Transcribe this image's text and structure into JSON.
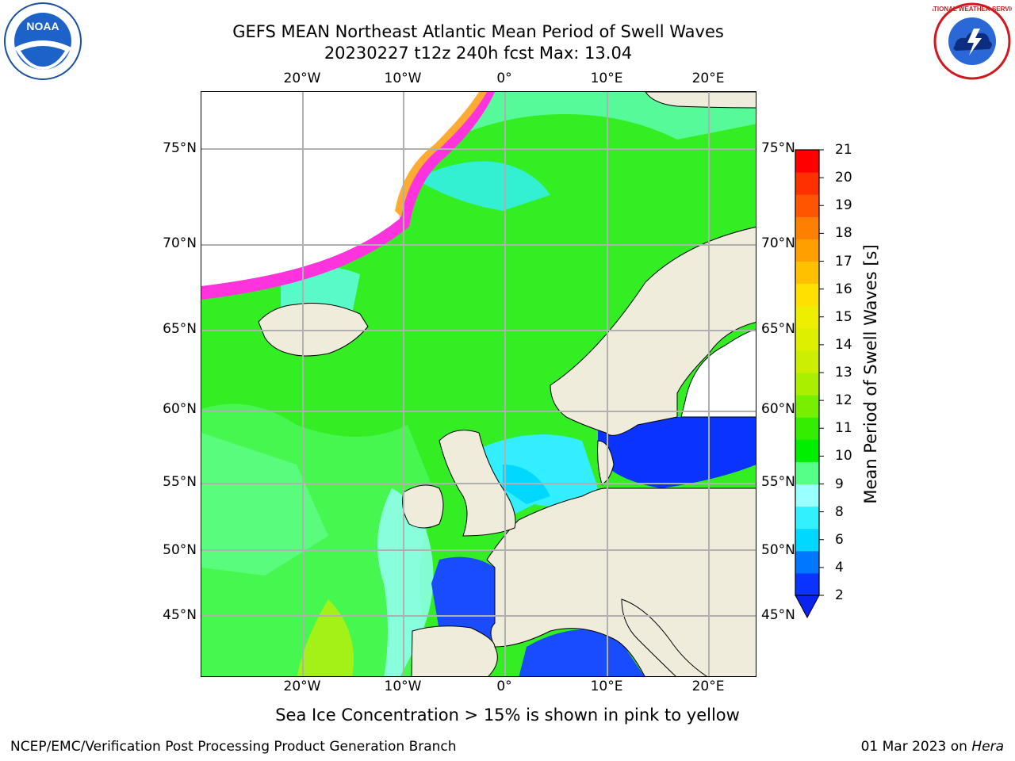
{
  "header": {
    "title_line1": "GEFS MEAN Northeast Atlantic Mean Period of Swell Waves",
    "title_line2": "20230227 t12z 240h fcst   Max: 13.04"
  },
  "logos": {
    "left": "NOAA",
    "right": "NATIONAL WEATHER SERVICE"
  },
  "map": {
    "lon_labels": [
      "20°W",
      "10°W",
      "0°",
      "10°E",
      "20°E"
    ],
    "lat_labels": [
      "75°N",
      "70°N",
      "65°N",
      "60°N",
      "55°N",
      "50°N",
      "45°N"
    ],
    "colors": {
      "land": "#efecdc",
      "ice_white": "#ffffff",
      "grid": "#b0b0b0",
      "coast": "#000000"
    }
  },
  "colorbar": {
    "label": "Mean Period of Swell Waves [s]",
    "ticks": [
      "21",
      "20",
      "19",
      "18",
      "17",
      "16",
      "15",
      "14",
      "13",
      "12",
      "11",
      "10",
      "9",
      "8",
      "6",
      "4",
      "2"
    ],
    "colors_bottom_to_top": [
      "#0a33ff",
      "#0077ff",
      "#00d8ff",
      "#33f0ff",
      "#99ffff",
      "#55ff88",
      "#00ee00",
      "#33ee00",
      "#77f000",
      "#aaee00",
      "#ccee00",
      "#ddf000",
      "#eeee00",
      "#ffe000",
      "#ffc000",
      "#ffa000",
      "#ff8000",
      "#ff5500",
      "#ff3000",
      "#ff0000"
    ],
    "extend_color": "#0a22ee"
  },
  "notes": {
    "ice_note": "Sea Ice Concentration > 15% is shown in pink to yellow"
  },
  "footer": {
    "left": "NCEP/EMC/Verification Post Processing Product Generation Branch",
    "right_prefix": "01 Mar 2023 on ",
    "right_host": "Hera"
  }
}
